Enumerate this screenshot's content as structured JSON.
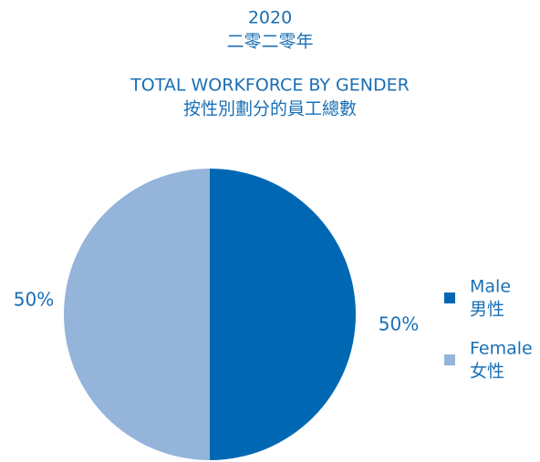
{
  "chart_data": {
    "type": "pie",
    "title": [
      "2020",
      "二零二零年"
    ],
    "subtitle": [
      "TOTAL WORKFORCE BY GENDER",
      "按性別劃分的員工總數"
    ],
    "categories": [
      "Male",
      "Female"
    ],
    "categories_zh": [
      "男性",
      "女性"
    ],
    "values": [
      50,
      50
    ],
    "value_labels": [
      "50%",
      "50%"
    ],
    "colors": [
      "#0068b3",
      "#94b4da"
    ]
  }
}
